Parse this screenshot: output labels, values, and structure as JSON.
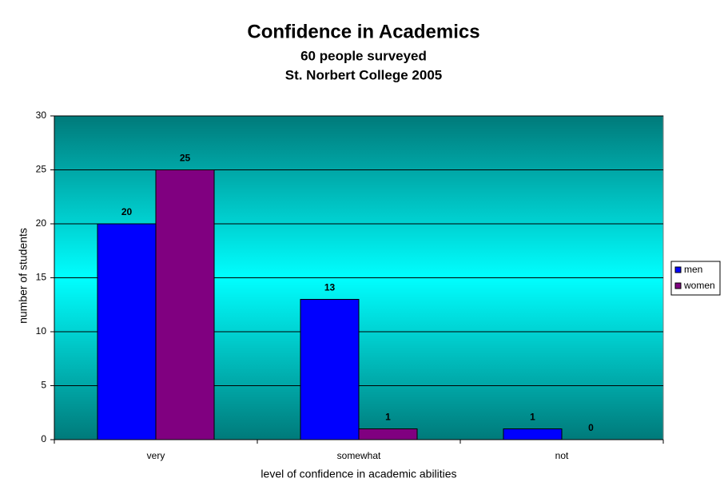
{
  "chart_data": {
    "type": "bar",
    "title": "Confidence in Academics",
    "subtitle": [
      "60 people surveyed",
      "St. Norbert College 2005"
    ],
    "x_label": "level of confidence in academic abilities",
    "y_label": "number of students",
    "categories": [
      "very",
      "somewhat",
      "not"
    ],
    "series": [
      {
        "name": "men",
        "color": "#0000ff",
        "values": [
          20,
          13,
          1
        ]
      },
      {
        "name": "women",
        "color": "#800080",
        "values": [
          25,
          1,
          0
        ]
      }
    ],
    "ylim": [
      0,
      30
    ],
    "yticks": [
      0,
      5,
      10,
      15,
      20,
      25,
      30
    ],
    "grid": true,
    "legend": "right",
    "data_labels": true
  }
}
